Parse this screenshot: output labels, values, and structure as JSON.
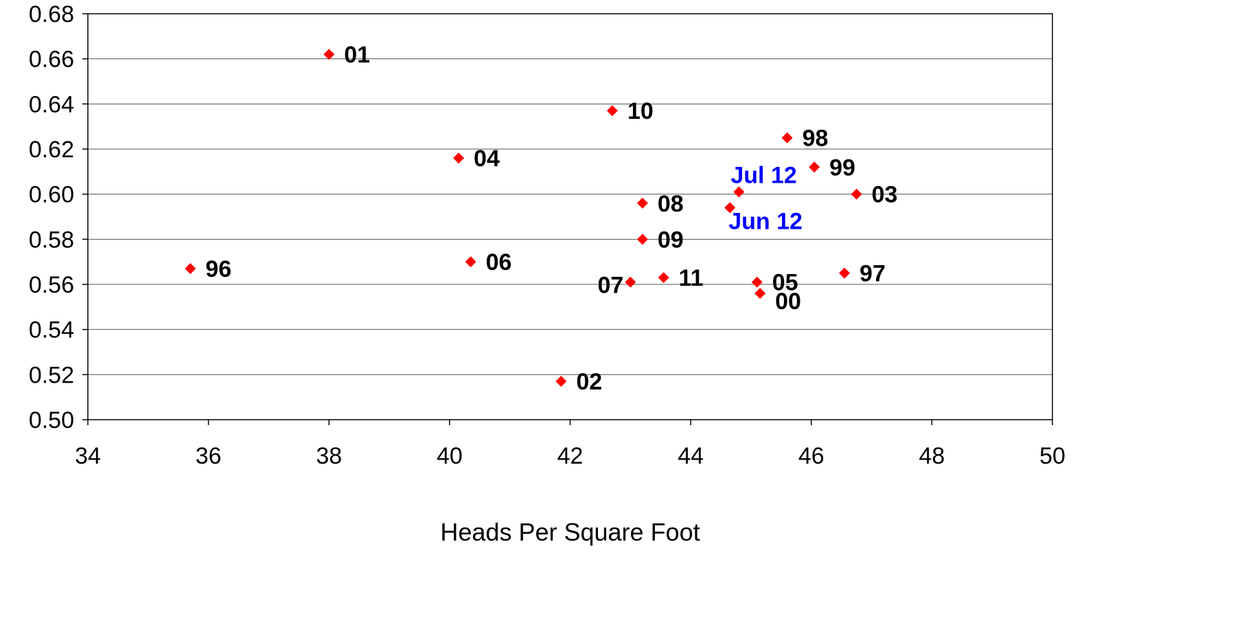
{
  "chart_data": {
    "type": "scatter",
    "title": "",
    "xlabel": "Heads Per Square Foot",
    "ylabel": "",
    "xlim": [
      34,
      50
    ],
    "ylim": [
      0.5,
      0.68
    ],
    "x_ticks": [
      "34",
      "36",
      "38",
      "40",
      "42",
      "44",
      "46",
      "48",
      "50"
    ],
    "y_ticks": [
      "0.50",
      "0.52",
      "0.54",
      "0.56",
      "0.58",
      "0.60",
      "0.62",
      "0.64",
      "0.66",
      "0.68"
    ],
    "grid": "horizontal",
    "marker": "diamond",
    "marker_color": "#ff0000",
    "label_color": "#000000",
    "highlight_label_color": "#0000ff",
    "points": [
      {
        "label": "01",
        "x": 38.0,
        "y": 0.662,
        "label_pos": "right"
      },
      {
        "label": "10",
        "x": 42.7,
        "y": 0.637,
        "label_pos": "right"
      },
      {
        "label": "98",
        "x": 45.6,
        "y": 0.625,
        "label_pos": "right"
      },
      {
        "label": "04",
        "x": 40.15,
        "y": 0.616,
        "label_pos": "right"
      },
      {
        "label": "99",
        "x": 46.05,
        "y": 0.612,
        "label_pos": "right"
      },
      {
        "label": "Jul 12",
        "x": 44.8,
        "y": 0.601,
        "label_pos": "above",
        "highlight": true
      },
      {
        "label": "03",
        "x": 46.75,
        "y": 0.6,
        "label_pos": "right"
      },
      {
        "label": "08",
        "x": 43.2,
        "y": 0.596,
        "label_pos": "right"
      },
      {
        "label": "Jun 12",
        "x": 44.65,
        "y": 0.594,
        "label_pos": "below",
        "highlight": true
      },
      {
        "label": "09",
        "x": 43.2,
        "y": 0.58,
        "label_pos": "right"
      },
      {
        "label": "06",
        "x": 40.35,
        "y": 0.57,
        "label_pos": "right"
      },
      {
        "label": "96",
        "x": 35.7,
        "y": 0.567,
        "label_pos": "right"
      },
      {
        "label": "97",
        "x": 46.55,
        "y": 0.565,
        "label_pos": "right"
      },
      {
        "label": "11",
        "x": 43.55,
        "y": 0.563,
        "label_pos": "right"
      },
      {
        "label": "05",
        "x": 45.1,
        "y": 0.561,
        "label_pos": "right"
      },
      {
        "label": "07",
        "x": 43.0,
        "y": 0.561,
        "label_pos": "left"
      },
      {
        "label": "00",
        "x": 45.15,
        "y": 0.556,
        "label_pos": "right-below"
      },
      {
        "label": "02",
        "x": 41.85,
        "y": 0.517,
        "label_pos": "right"
      }
    ]
  }
}
